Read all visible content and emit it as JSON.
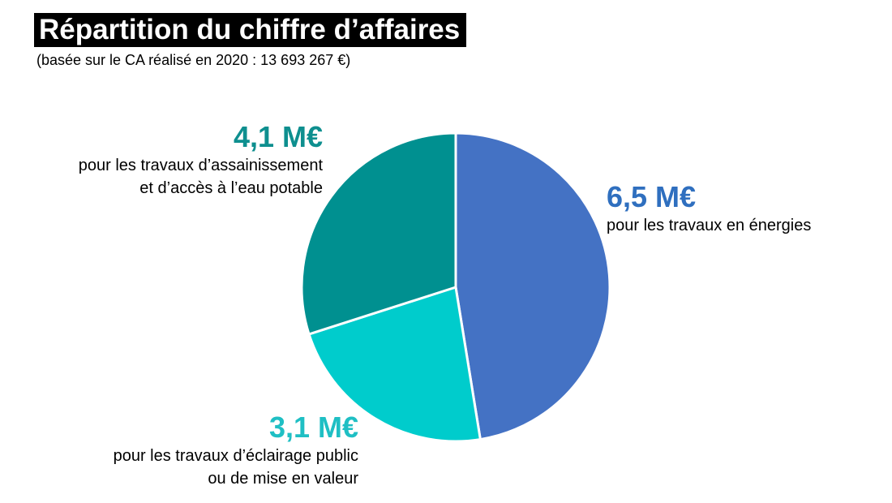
{
  "header": {
    "title": "Répartition du chiffre d’affaires",
    "subtitle": "(basée sur le CA réalisé en 2020 : 13 693 267 €)"
  },
  "chart_data": {
    "type": "pie",
    "title": "Répartition du chiffre d’affaires",
    "subtitle": "(basée sur le CA réalisé en 2020 : 13 693 267 €)",
    "start_angle": "12 o'clock",
    "direction": "clockwise",
    "slices": [
      {
        "value": 6.5,
        "value_label": "6,5 M€",
        "label_lines": [
          "pour les travaux en énergies"
        ],
        "color": "#4472C4",
        "label_color": "#2F6FBF"
      },
      {
        "value": 3.1,
        "value_label": "3,1 M€",
        "label_lines": [
          "pour les travaux d’éclairage public",
          "ou de mise en valeur"
        ],
        "color": "#00CCCC",
        "label_color": "#1FBFC4"
      },
      {
        "value": 4.1,
        "value_label": "4,1 M€",
        "label_lines": [
          "pour les travaux d’assainissement",
          "et d’accès à l’eau potable"
        ],
        "color": "#009090",
        "label_color": "#0E8F8F"
      }
    ]
  }
}
